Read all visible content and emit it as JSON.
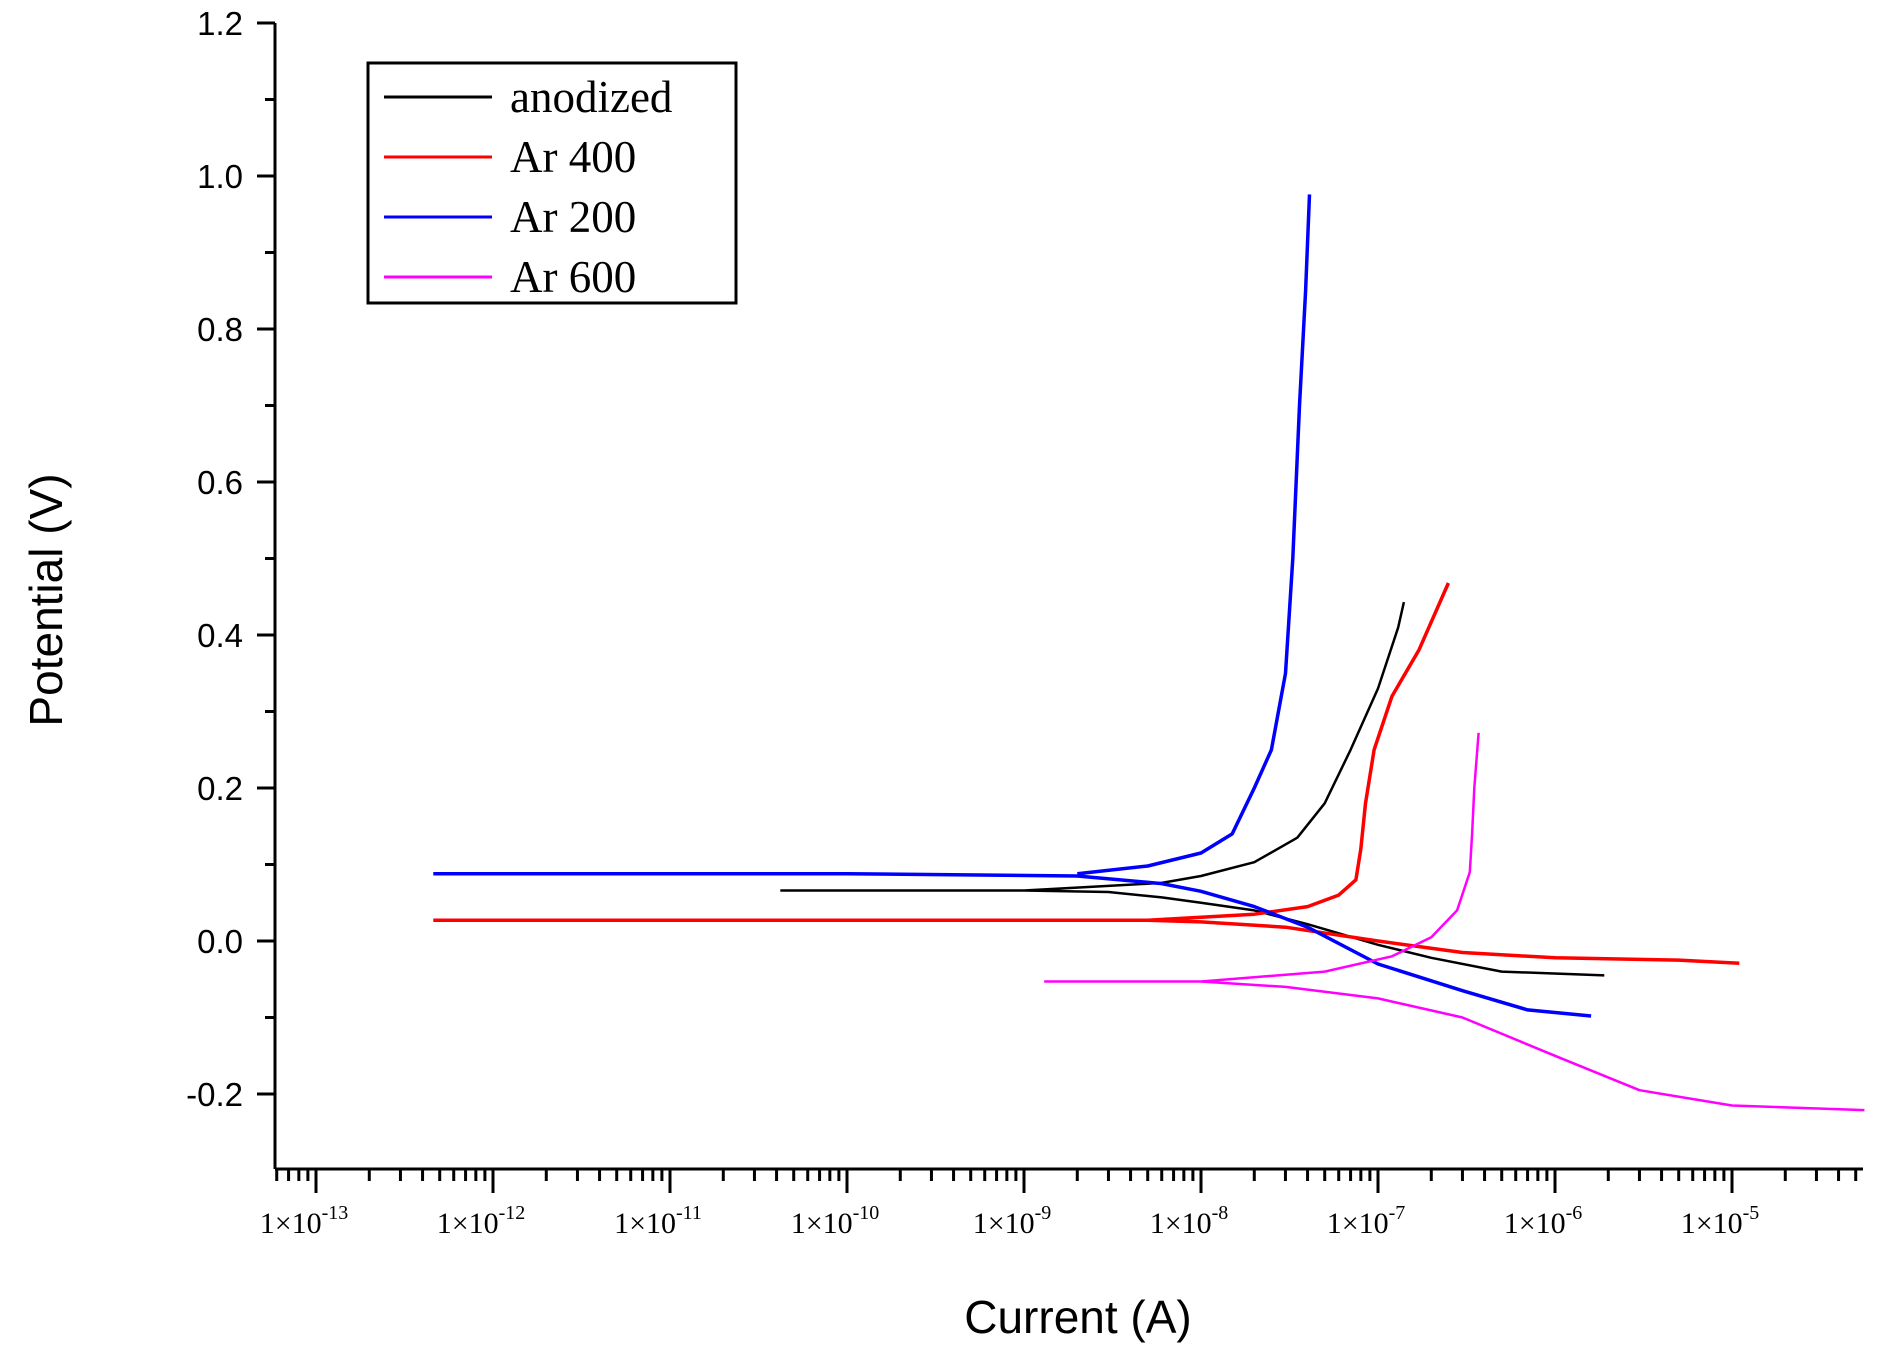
{
  "chart_data": {
    "type": "line",
    "title": "",
    "xlabel": "Current (A)",
    "ylabel": "Potential (V)",
    "xscale": "log",
    "xlim": [
      5.9e-14,
      6e-05
    ],
    "ylim": [
      -0.3,
      1.2
    ],
    "grid": false,
    "legend_position": "upper left (boxed)",
    "x_ticks": [
      {
        "base": "1×10",
        "exp": "-13"
      },
      {
        "base": "1×10",
        "exp": "-12"
      },
      {
        "base": "1×10",
        "exp": "-11"
      },
      {
        "base": "1×10",
        "exp": "-10"
      },
      {
        "base": "1×10",
        "exp": "-9"
      },
      {
        "base": "1×10",
        "exp": "-8"
      },
      {
        "base": "1×10",
        "exp": "-7"
      },
      {
        "base": "1×10",
        "exp": "-6"
      },
      {
        "base": "1×10",
        "exp": "-5"
      }
    ],
    "y_ticks": [
      "1.2",
      "1.0",
      "0.8",
      "0.6",
      "0.4",
      "0.2",
      "0.0",
      "-0.2"
    ],
    "series": [
      {
        "name": "anodized",
        "color": "#000000",
        "points": [
          [
            4.2e-11,
            0.066
          ],
          [
            1e-09,
            0.066
          ],
          [
            3e-09,
            0.064
          ],
          [
            6e-09,
            0.057
          ],
          [
            1e-08,
            0.05
          ],
          [
            2e-08,
            0.04
          ],
          [
            4e-08,
            0.022
          ],
          [
            1e-07,
            -0.005
          ],
          [
            2e-07,
            -0.022
          ],
          [
            5e-07,
            -0.04
          ],
          [
            1.9e-06,
            -0.045
          ],
          null,
          [
            1e-09,
            0.066
          ],
          [
            3e-09,
            0.072
          ],
          [
            6e-09,
            0.076
          ],
          [
            1e-08,
            0.085
          ],
          [
            2e-08,
            0.103
          ],
          [
            3.5e-08,
            0.135
          ],
          [
            5e-08,
            0.18
          ],
          [
            7e-08,
            0.25
          ],
          [
            1e-07,
            0.33
          ],
          [
            1.3e-07,
            0.41
          ],
          [
            1.4e-07,
            0.443
          ]
        ]
      },
      {
        "name": "Ar 400",
        "color": "#ff0000",
        "points": [
          [
            4.6e-13,
            0.027
          ],
          [
            1e-10,
            0.027
          ],
          [
            1e-09,
            0.027
          ],
          [
            5e-09,
            0.027
          ],
          [
            1e-08,
            0.025
          ],
          [
            3e-08,
            0.018
          ],
          [
            1e-07,
            0.0
          ],
          [
            3e-07,
            -0.015
          ],
          [
            1e-06,
            -0.022
          ],
          [
            5e-06,
            -0.025
          ],
          [
            1.1e-05,
            -0.029
          ],
          null,
          [
            5e-09,
            0.027
          ],
          [
            2e-08,
            0.035
          ],
          [
            4e-08,
            0.045
          ],
          [
            6e-08,
            0.06
          ],
          [
            7.5e-08,
            0.08
          ],
          [
            8e-08,
            0.12
          ],
          [
            8.5e-08,
            0.18
          ],
          [
            9.5e-08,
            0.25
          ],
          [
            1.2e-07,
            0.32
          ],
          [
            1.7e-07,
            0.38
          ],
          [
            2.5e-07,
            0.468
          ]
        ]
      },
      {
        "name": "Ar 200",
        "color": "#0000ff",
        "points": [
          [
            4.6e-13,
            0.088
          ],
          [
            1e-10,
            0.088
          ],
          [
            2e-09,
            0.085
          ],
          [
            6e-09,
            0.075
          ],
          [
            1e-08,
            0.065
          ],
          [
            2e-08,
            0.045
          ],
          [
            4e-08,
            0.018
          ],
          [
            1e-07,
            -0.03
          ],
          [
            3e-07,
            -0.065
          ],
          [
            7e-07,
            -0.09
          ],
          [
            1.6e-06,
            -0.098
          ],
          null,
          [
            2e-09,
            0.088
          ],
          [
            5e-09,
            0.098
          ],
          [
            1e-08,
            0.115
          ],
          [
            1.5e-08,
            0.14
          ],
          [
            2e-08,
            0.2
          ],
          [
            2.5e-08,
            0.25
          ],
          [
            3e-08,
            0.35
          ],
          [
            3.3e-08,
            0.5
          ],
          [
            3.6e-08,
            0.7
          ],
          [
            3.9e-08,
            0.85
          ],
          [
            4.1e-08,
            0.976
          ]
        ]
      },
      {
        "name": "Ar 600",
        "color": "#ff00ff",
        "points": [
          [
            1.3e-09,
            -0.053
          ],
          [
            1e-08,
            -0.053
          ],
          [
            3e-08,
            -0.06
          ],
          [
            1e-07,
            -0.075
          ],
          [
            3e-07,
            -0.1
          ],
          [
            1e-06,
            -0.15
          ],
          [
            3e-06,
            -0.195
          ],
          [
            1e-05,
            -0.215
          ],
          [
            5.6e-05,
            -0.221
          ],
          null,
          [
            1e-08,
            -0.053
          ],
          [
            5e-08,
            -0.04
          ],
          [
            1.2e-07,
            -0.02
          ],
          [
            2e-07,
            0.005
          ],
          [
            2.8e-07,
            0.04
          ],
          [
            3.3e-07,
            0.09
          ],
          [
            3.4e-07,
            0.14
          ],
          [
            3.5e-07,
            0.2
          ],
          [
            3.7e-07,
            0.272
          ]
        ]
      }
    ]
  },
  "legend": {
    "items": [
      {
        "label": "anodized",
        "color": "#000000"
      },
      {
        "label": "Ar 400",
        "color": "#ff0000"
      },
      {
        "label": "Ar 200",
        "color": "#0000ff"
      },
      {
        "label": "Ar 600",
        "color": "#ff00ff"
      }
    ]
  }
}
